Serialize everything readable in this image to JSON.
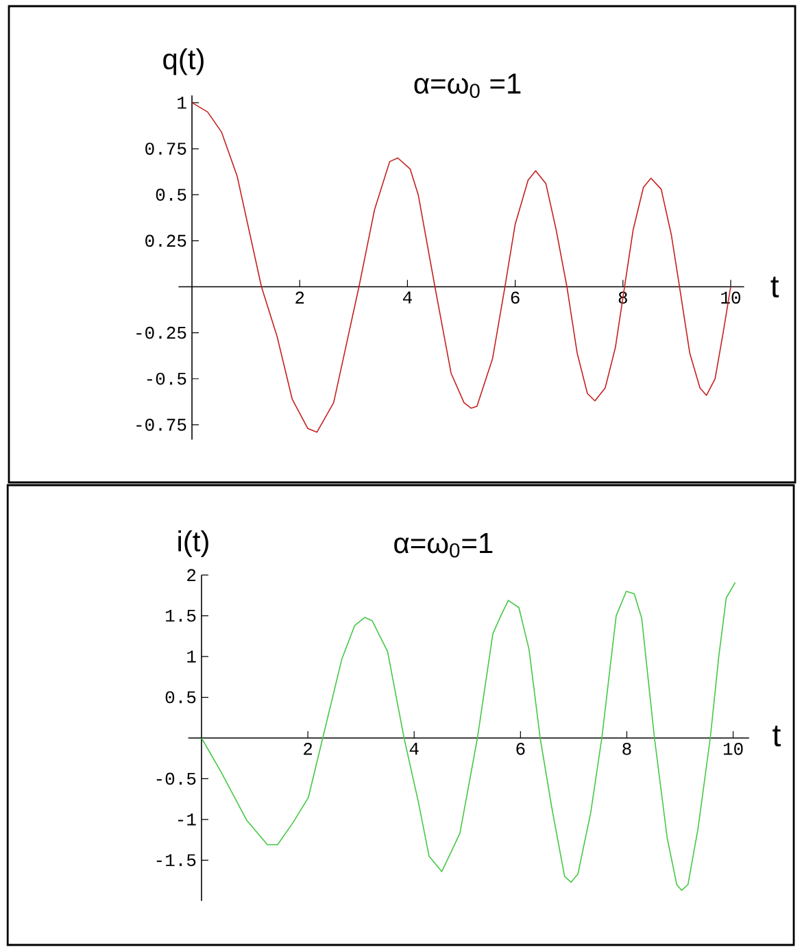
{
  "chart_data": [
    {
      "type": "line",
      "title": "α=ω$_{0}$ =1",
      "ylabel": "q(t)",
      "xlabel": "t",
      "color": "#c42020",
      "x": [
        0,
        0.29,
        0.55,
        0.84,
        1.29,
        1.58,
        1.86,
        2.15,
        2.32,
        2.63,
        3.1,
        3.39,
        3.67,
        3.82,
        4.05,
        4.2,
        4.51,
        4.81,
        5.05,
        5.18,
        5.29,
        5.58,
        5.81,
        6.0,
        6.24,
        6.38,
        6.57,
        6.76,
        6.96,
        7.15,
        7.34,
        7.48,
        7.67,
        7.86,
        8.03,
        8.19,
        8.38,
        8.52,
        8.71,
        8.9,
        9.05,
        9.24,
        9.43,
        9.55,
        9.71,
        9.86,
        10.0
      ],
      "values": [
        1.0,
        0.95,
        0.84,
        0.6,
        0,
        -0.27,
        -0.61,
        -0.77,
        -0.79,
        -0.63,
        0,
        0.42,
        0.68,
        0.7,
        0.64,
        0.5,
        0,
        -0.47,
        -0.63,
        -0.66,
        -0.65,
        -0.39,
        0,
        0.34,
        0.58,
        0.63,
        0.56,
        0.31,
        0,
        -0.36,
        -0.58,
        -0.62,
        -0.55,
        -0.33,
        0,
        0.31,
        0.54,
        0.59,
        0.53,
        0.28,
        0,
        -0.36,
        -0.55,
        -0.59,
        -0.5,
        -0.25,
        0
      ],
      "xlim": [
        -0.25,
        10.25
      ],
      "ylim": [
        -0.83,
        1.04
      ],
      "xticks": [
        2,
        4,
        6,
        8,
        10
      ],
      "yticks": [
        -0.75,
        -0.5,
        -0.25,
        0.25,
        0.5,
        0.75,
        1
      ]
    },
    {
      "type": "line",
      "title": "α=ω$_{0}$=1",
      "ylabel": "i(t)",
      "xlabel": "t",
      "color": "#44c844",
      "x": [
        0,
        0.37,
        0.85,
        1.24,
        1.43,
        1.72,
        2.01,
        2.28,
        2.64,
        2.88,
        3.07,
        3.21,
        3.5,
        3.81,
        4.08,
        4.28,
        4.52,
        4.86,
        5.19,
        5.48,
        5.63,
        5.77,
        5.97,
        6.16,
        6.37,
        6.59,
        6.83,
        6.95,
        7.08,
        7.32,
        7.53,
        7.8,
        7.99,
        8.14,
        8.28,
        8.52,
        8.76,
        8.94,
        9.03,
        9.15,
        9.34,
        9.57,
        9.73,
        9.87,
        10.04
      ],
      "values": [
        0,
        -0.42,
        -1.01,
        -1.31,
        -1.31,
        -1.04,
        -0.73,
        0,
        0.97,
        1.38,
        1.48,
        1.44,
        1.06,
        0,
        -0.79,
        -1.45,
        -1.64,
        -1.17,
        0,
        1.28,
        1.5,
        1.69,
        1.6,
        1.09,
        0,
        -0.86,
        -1.7,
        -1.77,
        -1.67,
        -0.92,
        0,
        1.5,
        1.8,
        1.77,
        1.47,
        0,
        -1.23,
        -1.8,
        -1.87,
        -1.8,
        -1.11,
        0,
        1.0,
        1.72,
        1.91
      ],
      "xlim": [
        -0.25,
        10.3
      ],
      "ylim": [
        -2,
        2
      ],
      "xticks": [
        2,
        4,
        6,
        8,
        10
      ],
      "yticks": [
        -1.5,
        -1,
        -0.5,
        0.5,
        1,
        1.5,
        2
      ]
    }
  ]
}
